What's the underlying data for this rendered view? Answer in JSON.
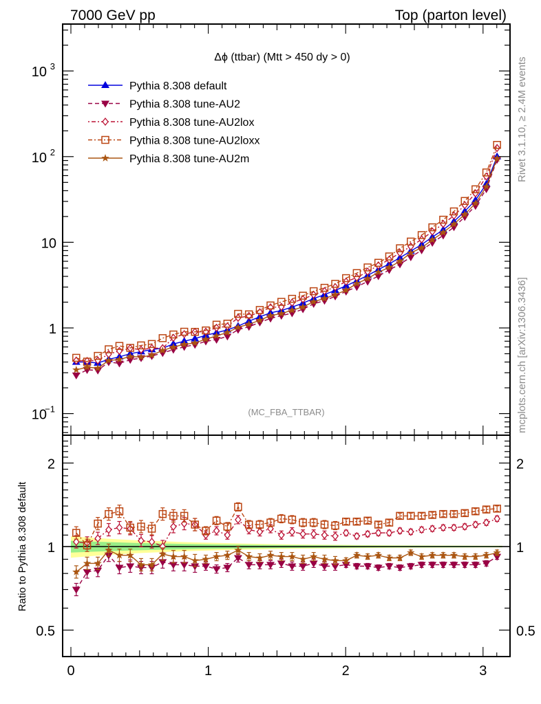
{
  "header": {
    "left_label": "7000 GeV pp",
    "right_label": "Top (parton level)"
  },
  "side_labels": {
    "rivet": "Rivet 3.1.10, ≥ 2.4M events",
    "mcplots": "mcplots.cern.ch [arXiv:1306.3436]"
  },
  "chart_data": [
    {
      "type": "line",
      "panel": "main",
      "title": "Δϕ (ttbar) (Mtt > 450 dy > 0)",
      "watermark": "(MC_FBA_TTBAR)",
      "xlabel": "",
      "ylabel": "",
      "yscale": "log",
      "xlim": [
        -0.06,
        3.2
      ],
      "ylim": [
        0.058,
        3500
      ],
      "y_ticks": [
        {
          "value": 0.1,
          "label_base": "10",
          "label_exp": "−1"
        },
        {
          "value": 1,
          "label_base": "1",
          "label_exp": ""
        },
        {
          "value": 10,
          "label_base": "10",
          "label_exp": ""
        },
        {
          "value": 100,
          "label_base": "10",
          "label_exp": "2"
        },
        {
          "value": 1000,
          "label_base": "10",
          "label_exp": "3"
        }
      ],
      "legend_position": "top-left",
      "legend": [
        {
          "name": "Pythia 8.308 default",
          "color": "#0000dd",
          "marker": "triangle-up",
          "dash": "solid"
        },
        {
          "name": "Pythia 8.308 tune-AU2",
          "color": "#990044",
          "marker": "triangle-down",
          "dash": "dashed"
        },
        {
          "name": "Pythia 8.308 tune-AU2lox",
          "color": "#bb1133",
          "marker": "diamond-open",
          "dash": "dashdot"
        },
        {
          "name": "Pythia 8.308 tune-AU2loxx",
          "color": "#bb4411",
          "marker": "square-open",
          "dash": "dashdot"
        },
        {
          "name": "Pythia 8.308 tune-AU2m",
          "color": "#aa5511",
          "marker": "star",
          "dash": "solid"
        }
      ],
      "x": [
        0.039,
        0.118,
        0.196,
        0.275,
        0.353,
        0.432,
        0.511,
        0.589,
        0.668,
        0.746,
        0.825,
        0.903,
        0.982,
        1.06,
        1.139,
        1.217,
        1.296,
        1.375,
        1.453,
        1.532,
        1.61,
        1.689,
        1.767,
        1.846,
        1.924,
        2.003,
        2.081,
        2.16,
        2.238,
        2.317,
        2.395,
        2.474,
        2.553,
        2.631,
        2.71,
        2.788,
        2.867,
        2.945,
        3.024,
        3.102
      ],
      "default_values": [
        0.4,
        0.4,
        0.39,
        0.43,
        0.46,
        0.5,
        0.53,
        0.56,
        0.58,
        0.65,
        0.7,
        0.75,
        0.82,
        0.88,
        0.95,
        1.05,
        1.2,
        1.35,
        1.5,
        1.6,
        1.75,
        1.95,
        2.2,
        2.45,
        2.75,
        3.1,
        3.55,
        4.1,
        4.8,
        5.6,
        6.6,
        7.9,
        9.4,
        11.5,
        14.0,
        17.5,
        23.0,
        31.0,
        48.0,
        100.0
      ]
    },
    {
      "type": "line",
      "panel": "ratio",
      "ylabel": "Ratio to Pythia 8.308 default",
      "yscale": "log",
      "ylim": [
        0.4,
        2.49
      ],
      "y_ticks": [
        {
          "value": 0.5,
          "label": "0.5"
        },
        {
          "value": 1,
          "label": "1"
        },
        {
          "value": 2,
          "label": "2"
        }
      ],
      "x_ticks": [
        {
          "value": 0,
          "label": "0"
        },
        {
          "value": 1,
          "label": "1"
        },
        {
          "value": 2,
          "label": "2"
        },
        {
          "value": 3,
          "label": "3"
        }
      ],
      "band_inner_halfwidth_start": 0.045,
      "band_outer_halfwidth_start": 0.085,
      "series": [
        {
          "name": "Pythia 8.308 tune-AU2",
          "values": [
            0.7,
            0.81,
            0.82,
            0.93,
            0.84,
            0.85,
            0.84,
            0.84,
            0.88,
            0.86,
            0.86,
            0.85,
            0.85,
            0.83,
            0.84,
            0.91,
            0.86,
            0.86,
            0.86,
            0.87,
            0.85,
            0.85,
            0.87,
            0.85,
            0.85,
            0.86,
            0.85,
            0.85,
            0.84,
            0.85,
            0.84,
            0.85,
            0.86,
            0.86,
            0.86,
            0.86,
            0.86,
            0.86,
            0.87,
            0.92
          ]
        },
        {
          "name": "Pythia 8.308 tune-AU2lox",
          "values": [
            1.04,
            1.03,
            1.07,
            1.15,
            1.17,
            1.16,
            1.05,
            1.04,
            1.0,
            1.18,
            1.21,
            1.2,
            1.1,
            1.14,
            1.1,
            1.25,
            1.15,
            1.13,
            1.16,
            1.1,
            1.13,
            1.11,
            1.11,
            1.1,
            1.09,
            1.12,
            1.09,
            1.11,
            1.12,
            1.12,
            1.14,
            1.13,
            1.15,
            1.16,
            1.17,
            1.17,
            1.18,
            1.2,
            1.22,
            1.26
          ]
        },
        {
          "name": "Pythia 8.308 tune-AU2loxx",
          "values": [
            1.12,
            1.01,
            1.21,
            1.31,
            1.34,
            1.17,
            1.18,
            1.16,
            1.31,
            1.29,
            1.29,
            1.2,
            1.14,
            1.24,
            1.18,
            1.39,
            1.2,
            1.2,
            1.22,
            1.26,
            1.25,
            1.22,
            1.22,
            1.2,
            1.19,
            1.23,
            1.23,
            1.24,
            1.2,
            1.22,
            1.29,
            1.29,
            1.29,
            1.3,
            1.31,
            1.31,
            1.32,
            1.34,
            1.36,
            1.37
          ]
        },
        {
          "name": "Pythia 8.308 tune-AU2m",
          "values": [
            0.81,
            0.87,
            0.87,
            0.97,
            0.93,
            0.93,
            0.86,
            0.86,
            0.94,
            0.92,
            0.92,
            0.89,
            0.9,
            0.92,
            0.93,
            0.97,
            0.92,
            0.91,
            0.93,
            0.92,
            0.92,
            0.9,
            0.92,
            0.9,
            0.89,
            0.89,
            0.93,
            0.92,
            0.93,
            0.91,
            0.91,
            0.95,
            0.92,
            0.93,
            0.93,
            0.93,
            0.92,
            0.92,
            0.93,
            0.95
          ]
        }
      ]
    }
  ]
}
